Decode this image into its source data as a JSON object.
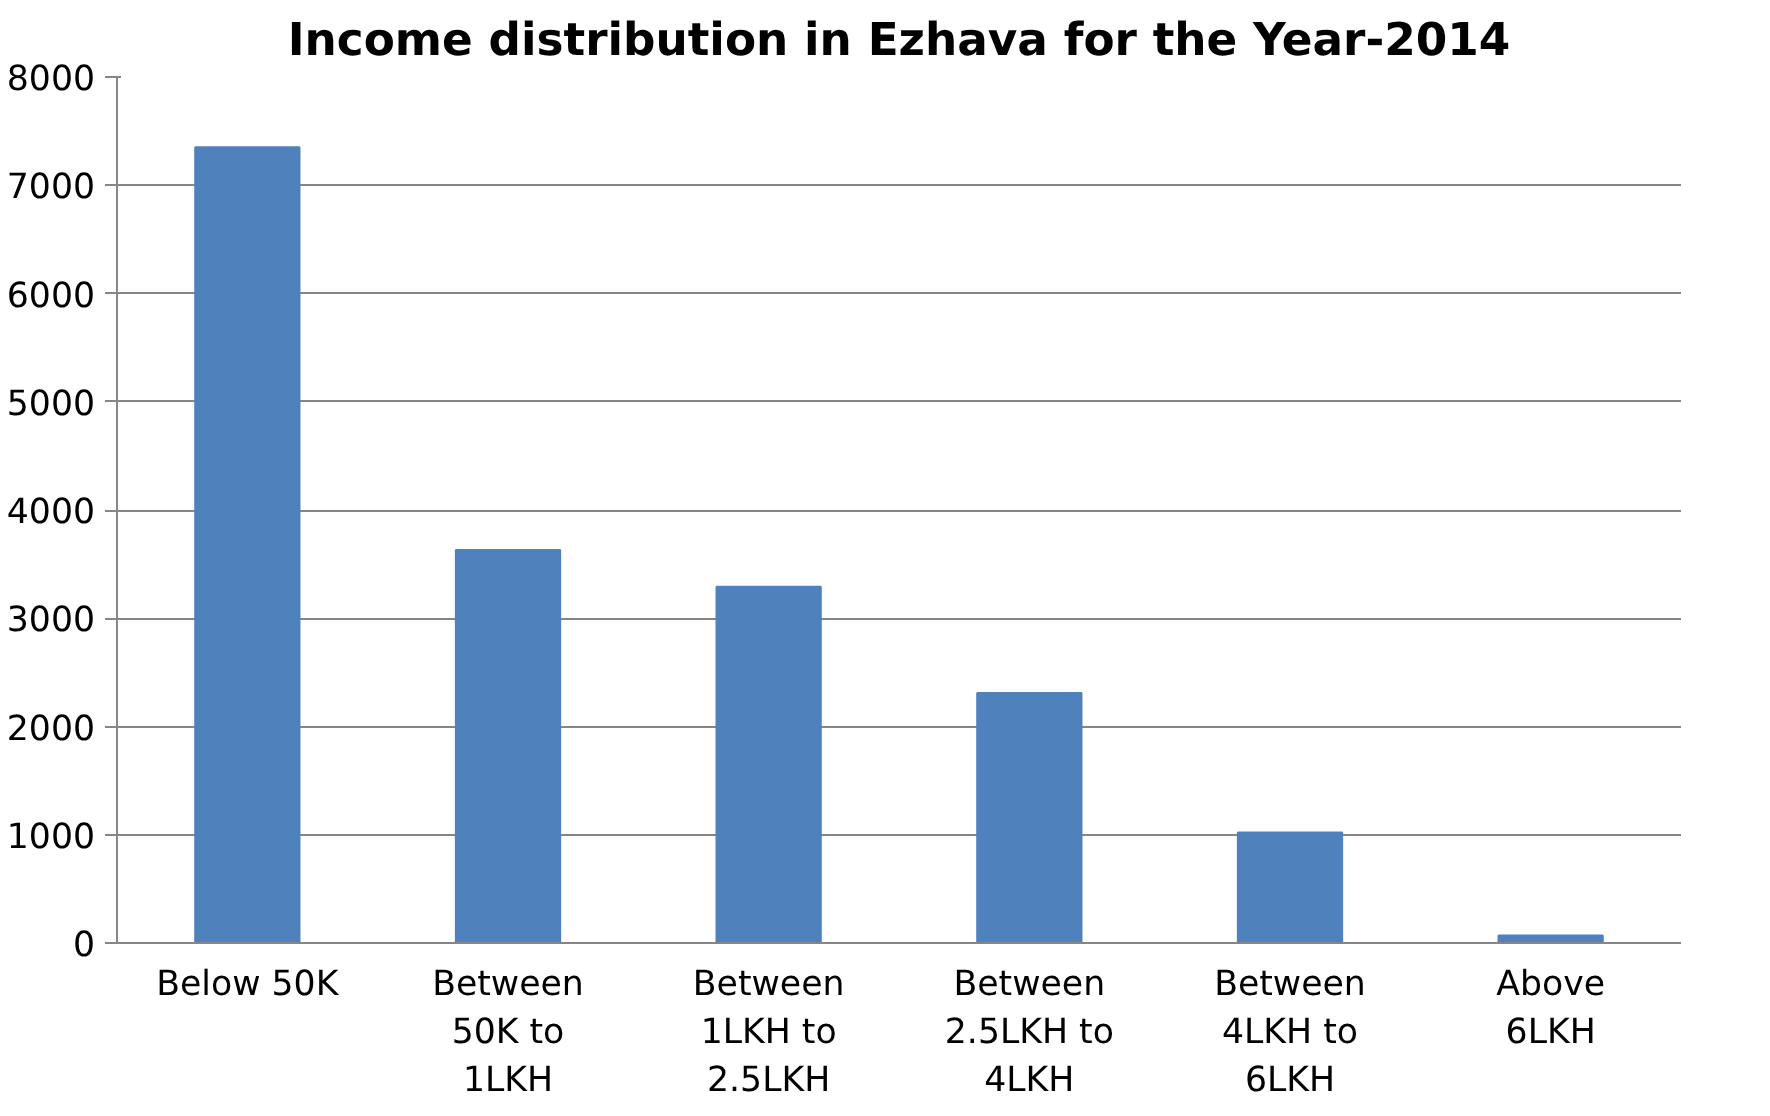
{
  "chart_data": {
    "type": "bar",
    "title": "Income distribution in Ezhava for the Year-2014",
    "categories": [
      "Below 50K",
      "Between 50K to 1LKH",
      "Between 1LKH to 2.5LKH",
      "Between 2.5LKH to 4LKH",
      "Between 4LKH to 6LKH",
      "Above 6LKH"
    ],
    "values": [
      7350,
      3630,
      3290,
      2310,
      1020,
      70
    ],
    "color": "#4f81bd",
    "ylim": [
      0,
      8000
    ],
    "yticks": [
      0,
      1000,
      2000,
      3000,
      4000,
      5000,
      6000,
      7000,
      8000
    ],
    "grid": "y"
  }
}
